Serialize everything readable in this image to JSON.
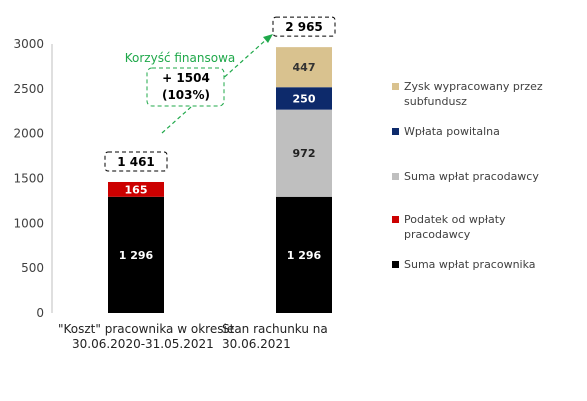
{
  "chart_data": {
    "type": "bar",
    "stacked": true,
    "ylim": [
      0,
      3000
    ],
    "yticks": [
      0,
      500,
      1000,
      1500,
      2000,
      2500,
      3000
    ],
    "grid": false,
    "legend_position": "right",
    "categories": [
      "\"Koszt\" pracownika w okresie 30.06.2020-31.05.2021",
      "Stan rachunku na 30.06.2021"
    ],
    "category_label_lines": [
      [
        "\"Koszt\" pracownika w okresie",
        "30.06.2020-31.05.2021"
      ],
      [
        "Stan rachunku na 30.06.2021"
      ]
    ],
    "series": [
      {
        "name": "Suma wpłat pracownika",
        "color": "#000000",
        "label_color": "#ffffff",
        "values": [
          1296,
          1296
        ],
        "labels": [
          "1 296",
          "1 296"
        ]
      },
      {
        "name": "Podatek od wpłaty pracodawcy",
        "color": "#cc0000",
        "label_color": "#ffffff",
        "values": [
          165,
          0
        ],
        "labels": [
          "165",
          ""
        ]
      },
      {
        "name": "Suma wpłat pracodawcy",
        "color": "#bfbfbf",
        "label_color": "#222222",
        "values": [
          0,
          972
        ],
        "labels": [
          "",
          "972"
        ]
      },
      {
        "name": "Wpłata powitalna",
        "color": "#0d2a6b",
        "label_color": "#ffffff",
        "values": [
          0,
          250
        ],
        "labels": [
          "",
          "250"
        ]
      },
      {
        "name": "Zysk wypracowany przez subfundusz",
        "color": "#d9c28f",
        "label_color": "#333333",
        "values": [
          0,
          447
        ],
        "labels": [
          "",
          "447"
        ]
      }
    ],
    "totals": [
      "1 461",
      "2 965"
    ],
    "annotation": {
      "title": "Korzyść finansowa",
      "line1": "+ 1504",
      "line2": "(103%)",
      "color": "#1fa84a"
    }
  }
}
